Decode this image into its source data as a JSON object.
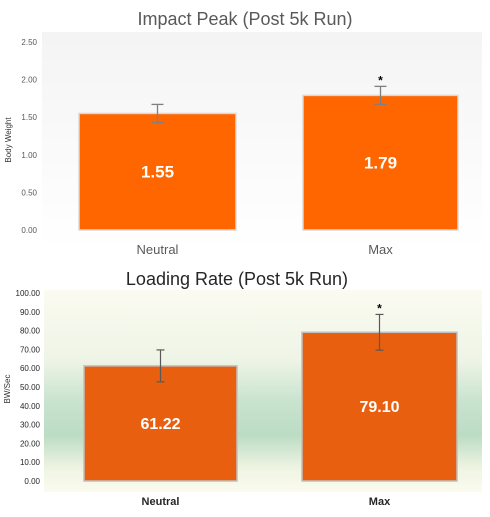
{
  "chart_data": [
    {
      "type": "bar",
      "title": "Impact Peak (Post 5k Run)",
      "ylabel": "Body Weight",
      "xlabel": "",
      "categories": [
        "Neutral",
        "Max"
      ],
      "values": [
        1.55,
        1.79
      ],
      "value_labels": [
        "1.55",
        "1.79"
      ],
      "error": [
        0.12,
        0.12
      ],
      "significance": [
        "",
        "*"
      ],
      "ylim": [
        0,
        2.5
      ],
      "yticks": [
        "0.00",
        "0.50",
        "1.00",
        "1.50",
        "2.00",
        "2.50"
      ],
      "grid": false,
      "legend": "none",
      "colors": {
        "bar": "#ff6600",
        "bar_edge": "#d9d9d9",
        "error": "#7f7f7f",
        "label": "#ffffff"
      }
    },
    {
      "type": "bar",
      "title": "Loading Rate (Post 5k Run)",
      "ylabel": "BW/Sec",
      "xlabel": "",
      "categories": [
        "Neutral",
        "Max"
      ],
      "values": [
        61.22,
        79.1
      ],
      "value_labels": [
        "61.22",
        "79.10"
      ],
      "error": [
        8.5,
        9.5
      ],
      "significance": [
        "",
        "*"
      ],
      "ylim": [
        0,
        100
      ],
      "yticks": [
        "0.00",
        "10.00",
        "20.00",
        "30.00",
        "40.00",
        "50.00",
        "60.00",
        "70.00",
        "80.00",
        "90.00",
        "100.00"
      ],
      "grid": false,
      "legend": "none",
      "colors": {
        "bar": "#e8600f",
        "bar_edge": "#bfbfbf",
        "error": "#595959",
        "label": "#ffffff"
      }
    }
  ]
}
